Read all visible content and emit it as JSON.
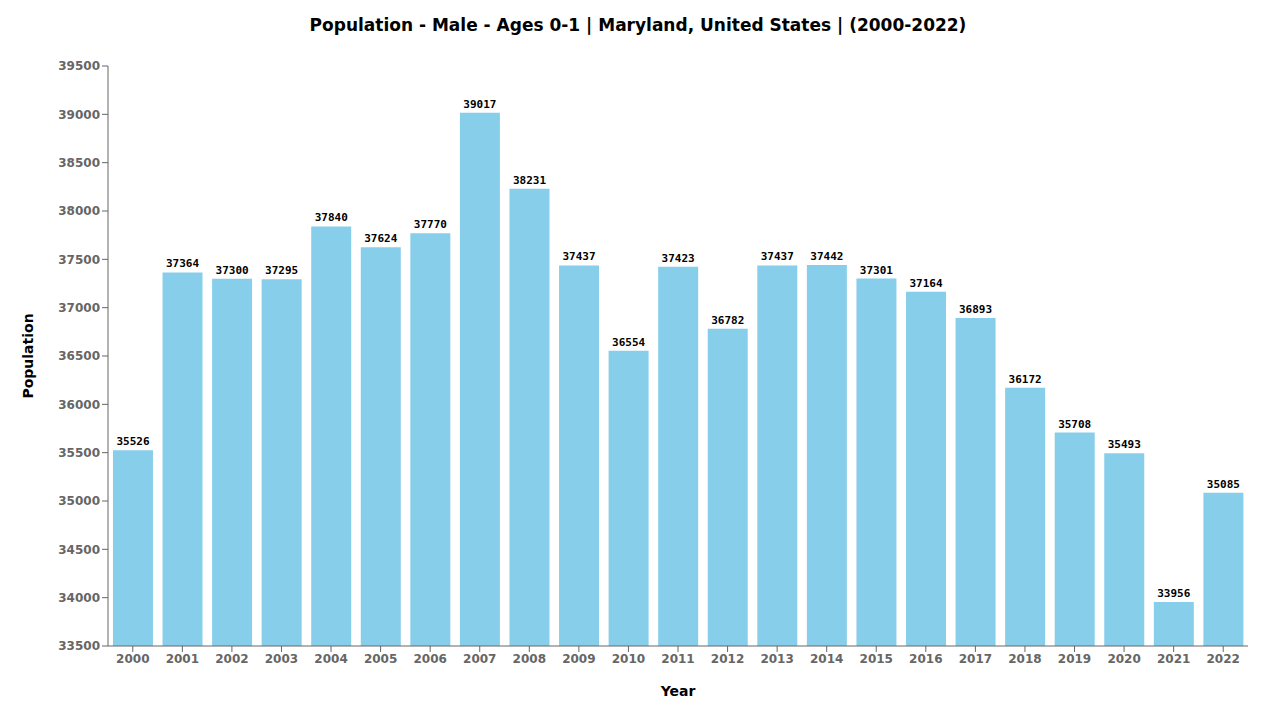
{
  "chart_data": {
    "type": "bar",
    "title": "Population - Male - Ages 0-1 | Maryland, United States |  (2000-2022)",
    "x_label": "Year",
    "y_label": "Population",
    "categories": [
      "2000",
      "2001",
      "2002",
      "2003",
      "2004",
      "2005",
      "2006",
      "2007",
      "2008",
      "2009",
      "2010",
      "2011",
      "2012",
      "2013",
      "2014",
      "2015",
      "2016",
      "2017",
      "2018",
      "2019",
      "2020",
      "2021",
      "2022"
    ],
    "values": [
      35526,
      37364,
      37300,
      37295,
      37840,
      37624,
      37770,
      39017,
      38231,
      37437,
      36554,
      37423,
      36782,
      37437,
      37442,
      37301,
      37164,
      36893,
      36172,
      35708,
      35493,
      33956,
      35085
    ],
    "color": "#87CEEB",
    "ylim": [
      33500,
      39500
    ],
    "yticks": [
      33500,
      34000,
      34500,
      35000,
      35500,
      36000,
      36500,
      37000,
      37500,
      38000,
      38500,
      39000,
      39500
    ],
    "grid": false,
    "data_labels": true
  }
}
